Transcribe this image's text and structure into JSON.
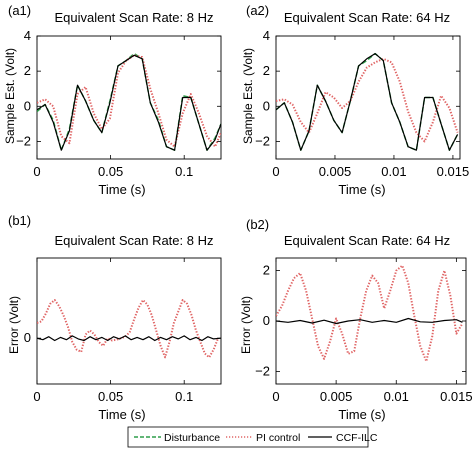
{
  "figure": {
    "legend": {
      "entries": [
        {
          "label": "Disturbance",
          "style": "dashed",
          "color": "#2e9e4a"
        },
        {
          "label": "PI control",
          "style": "dotted",
          "color": "#e06666"
        },
        {
          "label": "CCF-ILC",
          "style": "solid",
          "color": "#000000"
        }
      ],
      "placement": "bottom-center"
    },
    "colors": {
      "disturbance": "#2e9e4a",
      "pi": "#e06666",
      "ccf": "#000000",
      "pi_dense": "#cc3333"
    }
  },
  "chart_data": [
    {
      "panel_label": "(a1)",
      "type": "line",
      "title": "Equivalent Scan Rate: 8 Hz",
      "xlabel": "Time   (s)",
      "ylabel": "Sample Est.  (Volt)",
      "xlim": [
        0,
        0.125
      ],
      "ylim": [
        -3,
        4
      ],
      "xticks": [
        0,
        0.05,
        0.1
      ],
      "xtick_labels": [
        "0",
        "0.05",
        "0.1"
      ],
      "yticks": [
        -2,
        0,
        2,
        4
      ],
      "ytick_labels": [
        "−2",
        "0",
        "2",
        "4"
      ],
      "grid": false,
      "series": [
        {
          "name": "Disturbance",
          "x": [
            0,
            0.0055,
            0.011,
            0.0165,
            0.022,
            0.0275,
            0.033,
            0.0385,
            0.044,
            0.0495,
            0.055,
            0.0605,
            0.066,
            0.0715,
            0.077,
            0.0825,
            0.088,
            0.0935,
            0.099,
            0.1045,
            0.11,
            0.1155,
            0.121,
            0.125
          ],
          "y": [
            -0.3,
            0.1,
            -0.8,
            -2.5,
            -1.3,
            1.2,
            0.3,
            -0.8,
            -1.5,
            0.3,
            2.3,
            2.6,
            3.0,
            2.7,
            0.2,
            -0.8,
            -2.3,
            -2.5,
            0.6,
            0.5,
            -1.0,
            -2.5,
            -1.8,
            -1.0
          ]
        },
        {
          "name": "PI control",
          "x": [
            0,
            0.0055,
            0.011,
            0.0165,
            0.022,
            0.0275,
            0.033,
            0.0385,
            0.044,
            0.0495,
            0.055,
            0.0605,
            0.066,
            0.0715,
            0.077,
            0.0825,
            0.088,
            0.0935,
            0.099,
            0.1045,
            0.11,
            0.1155,
            0.121,
            0.125
          ],
          "y": [
            0.2,
            0.4,
            0.0,
            -1.7,
            -2.1,
            0.7,
            1.1,
            -0.4,
            -1.3,
            -0.7,
            1.9,
            2.6,
            2.9,
            2.8,
            1.0,
            -0.4,
            -1.9,
            -2.3,
            -0.4,
            0.7,
            -0.4,
            -1.7,
            -2.3,
            -1.5
          ]
        },
        {
          "name": "CCF-ILC",
          "x": [
            0,
            0.0055,
            0.011,
            0.0165,
            0.022,
            0.0275,
            0.033,
            0.0385,
            0.044,
            0.0495,
            0.055,
            0.0605,
            0.066,
            0.0715,
            0.077,
            0.0825,
            0.088,
            0.0935,
            0.099,
            0.1045,
            0.11,
            0.1155,
            0.121,
            0.125
          ],
          "y": [
            -0.2,
            0.1,
            -0.9,
            -2.5,
            -1.4,
            1.2,
            0.3,
            -0.8,
            -1.5,
            0.2,
            2.3,
            2.6,
            2.9,
            2.7,
            0.2,
            -0.9,
            -2.3,
            -2.5,
            0.5,
            0.5,
            -1.0,
            -2.5,
            -1.9,
            -1.0
          ]
        }
      ]
    },
    {
      "panel_label": "(a2)",
      "type": "line",
      "title": "Equivalent Scan Rate: 64 Hz",
      "xlabel": "Time   (s)",
      "ylabel": "Sample Est.  (Volt)",
      "xlim": [
        0,
        0.0156
      ],
      "ylim": [
        -3,
        4
      ],
      "xticks": [
        0,
        0.005,
        0.01,
        0.015
      ],
      "xtick_labels": [
        "0",
        "0.005",
        "0.01",
        "0.015"
      ],
      "yticks": [
        -2,
        0,
        2,
        4
      ],
      "ytick_labels": [
        "−2",
        "0",
        "2",
        "4"
      ],
      "grid": false,
      "series": [
        {
          "name": "Disturbance",
          "x": [
            0,
            0.0007,
            0.0014,
            0.0021,
            0.0028,
            0.0035,
            0.0042,
            0.0049,
            0.0056,
            0.0063,
            0.007,
            0.0077,
            0.0084,
            0.0091,
            0.0098,
            0.0105,
            0.0112,
            0.0119,
            0.0126,
            0.0133,
            0.014,
            0.0147,
            0.0154
          ],
          "y": [
            -0.2,
            0.2,
            -0.9,
            -2.5,
            -1.4,
            1.2,
            0.3,
            -0.8,
            -1.5,
            0.3,
            2.3,
            2.6,
            3.0,
            2.6,
            0.2,
            -0.9,
            -2.3,
            -2.5,
            0.5,
            0.5,
            -1.0,
            -2.5,
            -1.6
          ]
        },
        {
          "name": "PI control",
          "x": [
            0,
            0.0007,
            0.0014,
            0.0021,
            0.0028,
            0.0035,
            0.0042,
            0.0049,
            0.0056,
            0.0063,
            0.007,
            0.0077,
            0.0084,
            0.0091,
            0.0098,
            0.0105,
            0.0112,
            0.0119,
            0.0126,
            0.0133,
            0.014,
            0.0147,
            0.0154
          ],
          "y": [
            0.3,
            0.4,
            0.1,
            -0.9,
            -1.5,
            -0.4,
            0.8,
            0.5,
            -0.1,
            0.3,
            1.4,
            2.2,
            2.5,
            2.7,
            2.5,
            1.4,
            -0.3,
            -1.5,
            -2.0,
            -0.9,
            0.6,
            -0.1,
            -1.5
          ]
        },
        {
          "name": "CCF-ILC",
          "x": [
            0,
            0.0007,
            0.0014,
            0.0021,
            0.0028,
            0.0035,
            0.0042,
            0.0049,
            0.0056,
            0.0063,
            0.007,
            0.0077,
            0.0084,
            0.0091,
            0.0098,
            0.0105,
            0.0112,
            0.0119,
            0.0126,
            0.0133,
            0.014,
            0.0147,
            0.0154
          ],
          "y": [
            -0.2,
            0.2,
            -0.9,
            -2.5,
            -1.4,
            1.2,
            0.3,
            -0.8,
            -1.5,
            0.3,
            2.3,
            2.7,
            3.0,
            2.6,
            0.2,
            -0.9,
            -2.3,
            -2.5,
            0.5,
            0.5,
            -1.0,
            -2.5,
            -1.6
          ]
        }
      ]
    },
    {
      "panel_label": "(b1)",
      "type": "line",
      "title": "Equivalent Scan Rate: 8 Hz",
      "xlabel": "Time   (s)",
      "ylabel": "Error  (Volt)",
      "xlim": [
        0,
        0.125
      ],
      "ylim": [
        -0.6,
        1.05
      ],
      "xticks": [
        0,
        0.05,
        0.1
      ],
      "xtick_labels": [
        "0",
        "0.05",
        "0.1"
      ],
      "yticks": [
        0
      ],
      "ytick_labels": [
        "0"
      ],
      "grid": false,
      "series": [
        {
          "name": "PI control",
          "x": [
            0,
            0.003,
            0.006,
            0.009,
            0.012,
            0.015,
            0.018,
            0.021,
            0.024,
            0.027,
            0.03,
            0.033,
            0.036,
            0.039,
            0.042,
            0.045,
            0.048,
            0.051,
            0.054,
            0.057,
            0.06,
            0.063,
            0.066,
            0.069,
            0.072,
            0.075,
            0.078,
            0.081,
            0.084,
            0.087,
            0.09,
            0.093,
            0.096,
            0.099,
            0.102,
            0.105,
            0.108,
            0.111,
            0.114,
            0.117,
            0.12,
            0.123
          ],
          "y": [
            0.2,
            0.22,
            0.32,
            0.45,
            0.5,
            0.42,
            0.3,
            0.15,
            -0.05,
            -0.15,
            -0.18,
            0.05,
            0.1,
            0.05,
            -0.05,
            -0.1,
            0.0,
            -0.03,
            -0.02,
            0.0,
            0.02,
            0.08,
            0.25,
            0.4,
            0.5,
            0.44,
            0.3,
            0.1,
            -0.1,
            -0.25,
            -0.05,
            0.2,
            0.35,
            0.5,
            0.45,
            0.3,
            0.1,
            -0.05,
            -0.2,
            -0.25,
            -0.15,
            0.0
          ]
        },
        {
          "name": "CCF-ILC",
          "x": [
            0,
            0.004,
            0.008,
            0.012,
            0.016,
            0.02,
            0.024,
            0.028,
            0.032,
            0.036,
            0.04,
            0.044,
            0.048,
            0.052,
            0.056,
            0.06,
            0.064,
            0.068,
            0.072,
            0.076,
            0.08,
            0.084,
            0.088,
            0.092,
            0.096,
            0.1,
            0.104,
            0.108,
            0.112,
            0.116,
            0.12,
            0.125
          ],
          "y": [
            0.0,
            -0.02,
            0.02,
            -0.03,
            0.01,
            -0.02,
            0.03,
            -0.01,
            -0.03,
            0.02,
            -0.02,
            0.01,
            -0.03,
            0.02,
            -0.01,
            0.03,
            -0.02,
            0.01,
            -0.02,
            0.02,
            -0.03,
            0.01,
            -0.02,
            0.02,
            -0.01,
            0.03,
            -0.02,
            0.01,
            -0.03,
            0.02,
            -0.01,
            0.0
          ]
        }
      ]
    },
    {
      "panel_label": "(b2)",
      "type": "line",
      "title": "Equivalent Scan Rate: 64 Hz",
      "xlabel": "Time   (s)",
      "ylabel": "Error  (Volt)",
      "xlim": [
        0,
        0.0158
      ],
      "ylim": [
        -2.5,
        2.5
      ],
      "xticks": [
        0,
        0.005,
        0.01,
        0.015
      ],
      "xtick_labels": [
        "0",
        "0.005",
        "0.01",
        "0.015"
      ],
      "yticks": [
        -2,
        0,
        2
      ],
      "ytick_labels": [
        "−2",
        "0",
        "2"
      ],
      "grid": false,
      "series": [
        {
          "name": "PI control",
          "x": [
            0,
            0.0005,
            0.001,
            0.0015,
            0.002,
            0.0025,
            0.003,
            0.0035,
            0.004,
            0.0045,
            0.005,
            0.0055,
            0.006,
            0.0065,
            0.007,
            0.0075,
            0.008,
            0.0085,
            0.009,
            0.0095,
            0.01,
            0.0105,
            0.011,
            0.0115,
            0.012,
            0.0125,
            0.013,
            0.0135,
            0.014,
            0.0145,
            0.015,
            0.0155
          ],
          "y": [
            0.2,
            0.6,
            1.2,
            1.7,
            1.9,
            1.2,
            0.1,
            -1.0,
            -1.5,
            -0.8,
            0.1,
            -0.5,
            -1.3,
            -1.2,
            0.1,
            1.2,
            1.8,
            1.5,
            0.5,
            1.2,
            2.0,
            2.2,
            1.5,
            0.2,
            -1.0,
            -1.6,
            -0.6,
            1.2,
            2.0,
            1.0,
            -0.5,
            -0.1
          ]
        },
        {
          "name": "CCF-ILC",
          "x": [
            0,
            0.001,
            0.002,
            0.003,
            0.004,
            0.005,
            0.006,
            0.007,
            0.008,
            0.009,
            0.01,
            0.011,
            0.012,
            0.013,
            0.014,
            0.015,
            0.0155
          ],
          "y": [
            0.0,
            -0.05,
            0.02,
            -0.08,
            0.03,
            -0.1,
            0.0,
            0.05,
            -0.05,
            0.02,
            -0.05,
            0.1,
            -0.03,
            -0.05,
            0.02,
            0.05,
            -0.05
          ]
        }
      ]
    }
  ]
}
